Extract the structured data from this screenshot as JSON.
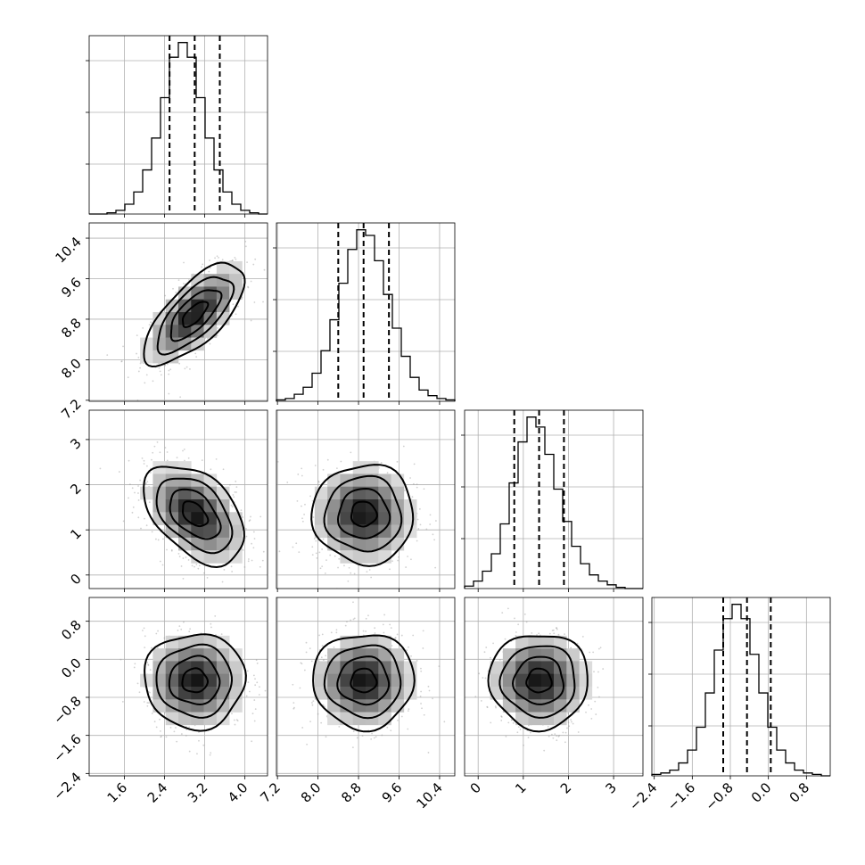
{
  "chart_data": {
    "type": "corner",
    "parameters": [
      {
        "name": "",
        "mean": 3.0,
        "sigma": 0.5,
        "quantiles": [
          2.5,
          3.0,
          3.5
        ],
        "range": [
          0.9,
          4.45
        ],
        "ticks": [
          "1.6",
          "2.4",
          "3.2",
          "4.0"
        ]
      },
      {
        "name": "",
        "mean": 8.9,
        "sigma": 0.5,
        "quantiles": [
          8.4,
          8.9,
          9.4
        ],
        "range": [
          7.18,
          10.7
        ],
        "ticks": [
          "7.2",
          "8.0",
          "8.8",
          "9.6",
          "10.4"
        ]
      },
      {
        "name": "",
        "mean": 1.35,
        "sigma": 0.55,
        "quantiles": [
          0.8,
          1.35,
          1.9
        ],
        "range": [
          -0.3,
          3.65
        ],
        "ticks": [
          "0",
          "1",
          "2",
          "3"
        ]
      },
      {
        "name": "",
        "mean": -0.45,
        "sigma": 0.5,
        "quantiles": [
          -0.95,
          -0.45,
          0.05
        ],
        "range": [
          -2.45,
          1.3
        ],
        "ticks": [
          "-2.4",
          "-1.6",
          "-0.8",
          "0.0",
          "0.8"
        ]
      }
    ],
    "correlations": {
      "1-0": 0.7,
      "2-0": -0.45,
      "2-1": 0.0,
      "3-0": 0.0,
      "3-1": 0.0,
      "3-2": 0.0
    },
    "contour_sigma_levels": [
      0.5,
      1.0,
      1.5,
      2.0
    ],
    "histograms": [
      [
        0,
        0,
        1,
        3,
        8,
        18,
        36,
        62,
        95,
        128,
        140,
        128,
        95,
        62,
        36,
        18,
        8,
        3,
        1,
        0
      ],
      [
        1,
        2,
        5,
        10,
        20,
        36,
        58,
        84,
        108,
        122,
        118,
        100,
        76,
        52,
        32,
        17,
        8,
        4,
        2,
        1
      ],
      [
        2,
        6,
        14,
        28,
        52,
        85,
        118,
        138,
        130,
        108,
        80,
        54,
        34,
        20,
        11,
        6,
        3,
        1,
        0,
        0
      ],
      [
        1,
        2,
        4,
        9,
        18,
        34,
        58,
        88,
        110,
        120,
        110,
        85,
        58,
        34,
        18,
        9,
        4,
        2,
        1,
        0
      ]
    ],
    "grid": true,
    "scatter_samples": 700
  }
}
